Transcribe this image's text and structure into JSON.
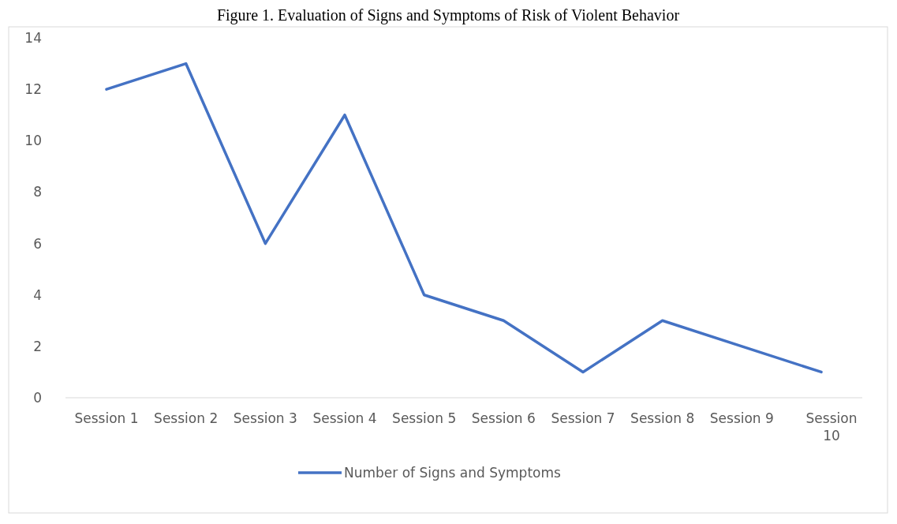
{
  "chart_data": {
    "type": "line",
    "title": "Figure 1. Evaluation of Signs and Symptoms of Risk of Violent Behavior",
    "categories": [
      "Session 1",
      "Session 2",
      "Session 3",
      "Session 4",
      "Session 5",
      "Session 6",
      "Session 7",
      "Session 8",
      "Session 9",
      "Session 10"
    ],
    "series": [
      {
        "name": "Number of Signs and Symptoms",
        "color": "#4472c4",
        "values": [
          12,
          13,
          6,
          11,
          4,
          3,
          1,
          3,
          2,
          1
        ]
      }
    ],
    "ylim": [
      0,
      14
    ],
    "yticks": [
      0,
      2,
      4,
      6,
      8,
      10,
      12,
      14
    ],
    "legend": "bottom",
    "marker": "none",
    "line_style": "solid"
  }
}
